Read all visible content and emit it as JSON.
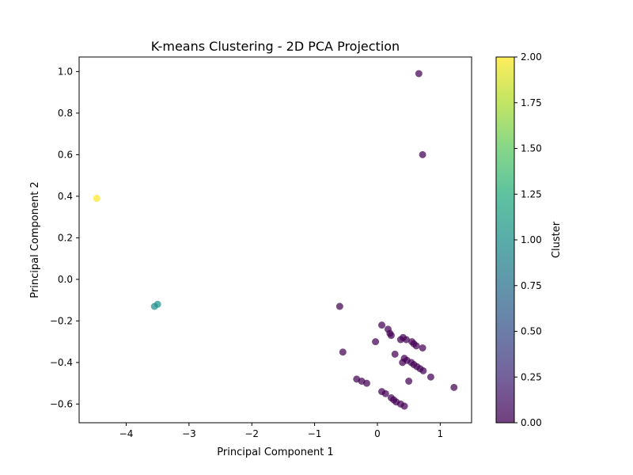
{
  "chart_data": {
    "type": "scatter",
    "title": "K-means Clustering - 2D PCA Projection",
    "xlabel": "Principal Component 1",
    "ylabel": "Principal Component 2",
    "xlim": [
      -4.75,
      1.5
    ],
    "ylim": [
      -0.69,
      1.07
    ],
    "xticks": [
      -4,
      -3,
      -2,
      -1,
      0,
      1
    ],
    "xtick_labels": [
      "−4",
      "−3",
      "−2",
      "−1",
      "0",
      "1"
    ],
    "yticks": [
      -0.6,
      -0.4,
      -0.2,
      0.0,
      0.2,
      0.4,
      0.6,
      0.8,
      1.0
    ],
    "ytick_labels": [
      "−0.6",
      "−0.4",
      "−0.2",
      "0.0",
      "0.2",
      "0.4",
      "0.6",
      "0.8",
      "1.0"
    ],
    "grid": false,
    "colormap": "viridis",
    "colorbar": {
      "label": "Cluster",
      "range": [
        0.0,
        2.0
      ],
      "ticks": [
        0.0,
        0.25,
        0.5,
        0.75,
        1.0,
        1.25,
        1.5,
        1.75,
        2.0
      ],
      "tick_labels": [
        "0.00",
        "0.25",
        "0.50",
        "0.75",
        "1.00",
        "1.25",
        "1.50",
        "1.75",
        "2.00"
      ]
    },
    "cluster_colors": {
      "0": "#440154",
      "1": "#21918c",
      "2": "#fde725"
    },
    "points": [
      {
        "x": 0.66,
        "y": 0.99,
        "cluster": 0
      },
      {
        "x": 0.72,
        "y": 0.6,
        "cluster": 0
      },
      {
        "x": -4.47,
        "y": 0.39,
        "cluster": 2
      },
      {
        "x": -3.55,
        "y": -0.13,
        "cluster": 1
      },
      {
        "x": -3.5,
        "y": -0.12,
        "cluster": 1
      },
      {
        "x": -0.6,
        "y": -0.13,
        "cluster": 0
      },
      {
        "x": -0.55,
        "y": -0.35,
        "cluster": 0
      },
      {
        "x": 0.07,
        "y": -0.22,
        "cluster": 0
      },
      {
        "x": 0.17,
        "y": -0.24,
        "cluster": 0
      },
      {
        "x": 0.2,
        "y": -0.26,
        "cluster": 0
      },
      {
        "x": 0.22,
        "y": -0.27,
        "cluster": 0
      },
      {
        "x": -0.03,
        "y": -0.3,
        "cluster": 0
      },
      {
        "x": 0.37,
        "y": -0.29,
        "cluster": 0
      },
      {
        "x": 0.41,
        "y": -0.28,
        "cluster": 0
      },
      {
        "x": 0.46,
        "y": -0.29,
        "cluster": 0
      },
      {
        "x": 0.55,
        "y": -0.3,
        "cluster": 0
      },
      {
        "x": 0.58,
        "y": -0.31,
        "cluster": 0
      },
      {
        "x": 0.62,
        "y": -0.32,
        "cluster": 0
      },
      {
        "x": 0.72,
        "y": -0.33,
        "cluster": 0
      },
      {
        "x": 0.28,
        "y": -0.36,
        "cluster": 0
      },
      {
        "x": 0.43,
        "y": -0.38,
        "cluster": 0
      },
      {
        "x": 0.47,
        "y": -0.39,
        "cluster": 0
      },
      {
        "x": 0.54,
        "y": -0.4,
        "cluster": 0
      },
      {
        "x": 0.4,
        "y": -0.4,
        "cluster": 0
      },
      {
        "x": 0.58,
        "y": -0.41,
        "cluster": 0
      },
      {
        "x": 0.63,
        "y": -0.42,
        "cluster": 0
      },
      {
        "x": 0.68,
        "y": -0.43,
        "cluster": 0
      },
      {
        "x": 0.73,
        "y": -0.44,
        "cluster": 0
      },
      {
        "x": 0.85,
        "y": -0.47,
        "cluster": 0
      },
      {
        "x": 0.5,
        "y": -0.49,
        "cluster": 0
      },
      {
        "x": 1.22,
        "y": -0.52,
        "cluster": 0
      },
      {
        "x": -0.33,
        "y": -0.48,
        "cluster": 0
      },
      {
        "x": -0.25,
        "y": -0.49,
        "cluster": 0
      },
      {
        "x": -0.17,
        "y": -0.5,
        "cluster": 0
      },
      {
        "x": 0.07,
        "y": -0.54,
        "cluster": 0
      },
      {
        "x": 0.13,
        "y": -0.55,
        "cluster": 0
      },
      {
        "x": 0.22,
        "y": -0.57,
        "cluster": 0
      },
      {
        "x": 0.26,
        "y": -0.58,
        "cluster": 0
      },
      {
        "x": 0.3,
        "y": -0.59,
        "cluster": 0
      },
      {
        "x": 0.37,
        "y": -0.6,
        "cluster": 0
      },
      {
        "x": 0.43,
        "y": -0.61,
        "cluster": 0
      }
    ]
  }
}
